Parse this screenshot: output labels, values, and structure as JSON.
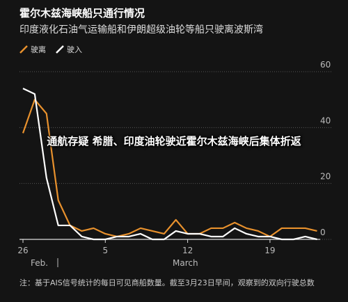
{
  "chart_data": {
    "type": "line",
    "title": "霍尔木兹海峡船只通行情况",
    "subtitle": "印度液化石油气运输船和伊朗超级油轮等船只驶离波斯湾",
    "categories": [
      "26",
      null,
      null,
      null,
      null,
      null,
      null,
      "5",
      null,
      null,
      null,
      null,
      null,
      null,
      "12",
      null,
      null,
      null,
      null,
      null,
      null,
      "19",
      null,
      null,
      null,
      null
    ],
    "month_labels": [
      "Feb.",
      "March"
    ],
    "series": [
      {
        "name": "驶离",
        "color": "#e8912d",
        "values": [
          38,
          50,
          45,
          14,
          5,
          3,
          4,
          2,
          1,
          2,
          4,
          3,
          2,
          7,
          2,
          2,
          4,
          4,
          6,
          4,
          3,
          1,
          4,
          4,
          4,
          3
        ]
      },
      {
        "name": "驶入",
        "color": "#ffffff",
        "values": [
          54,
          52,
          22,
          5,
          5,
          1,
          0,
          0,
          1,
          1,
          2,
          0,
          0,
          3,
          2,
          2,
          1,
          1,
          4,
          2,
          1,
          1,
          0,
          0,
          1,
          0
        ]
      }
    ],
    "ylim": [
      0,
      60
    ],
    "yticks": [
      0,
      20,
      40,
      60
    ],
    "grid": true,
    "overlay": "通航存疑 希腊、印度油轮驶近霍尔木兹海峡后集体折返",
    "note": "注：基于AIS信号统计的每日可见商船数量。截至3月23日早间，观察到的双向行驶总数"
  }
}
